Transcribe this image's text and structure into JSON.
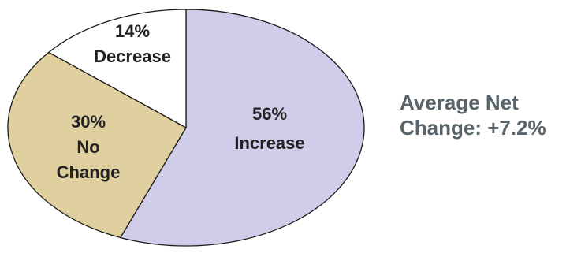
{
  "chart_data": {
    "type": "pie",
    "slices": [
      {
        "key": "increase",
        "value": 56,
        "color": "#cfcde9",
        "label_lines": [
          "56%",
          "Increase"
        ]
      },
      {
        "key": "no_change",
        "value": 30,
        "color": "#e0cf9f",
        "label_lines": [
          "30%",
          "No",
          "Change"
        ]
      },
      {
        "key": "decrease",
        "value": 14,
        "color": "#ffffff",
        "label_lines": [
          "14%",
          "Decrease"
        ]
      }
    ]
  },
  "summary": {
    "line1": "Average Net",
    "line2": "Change: +7.2%"
  }
}
